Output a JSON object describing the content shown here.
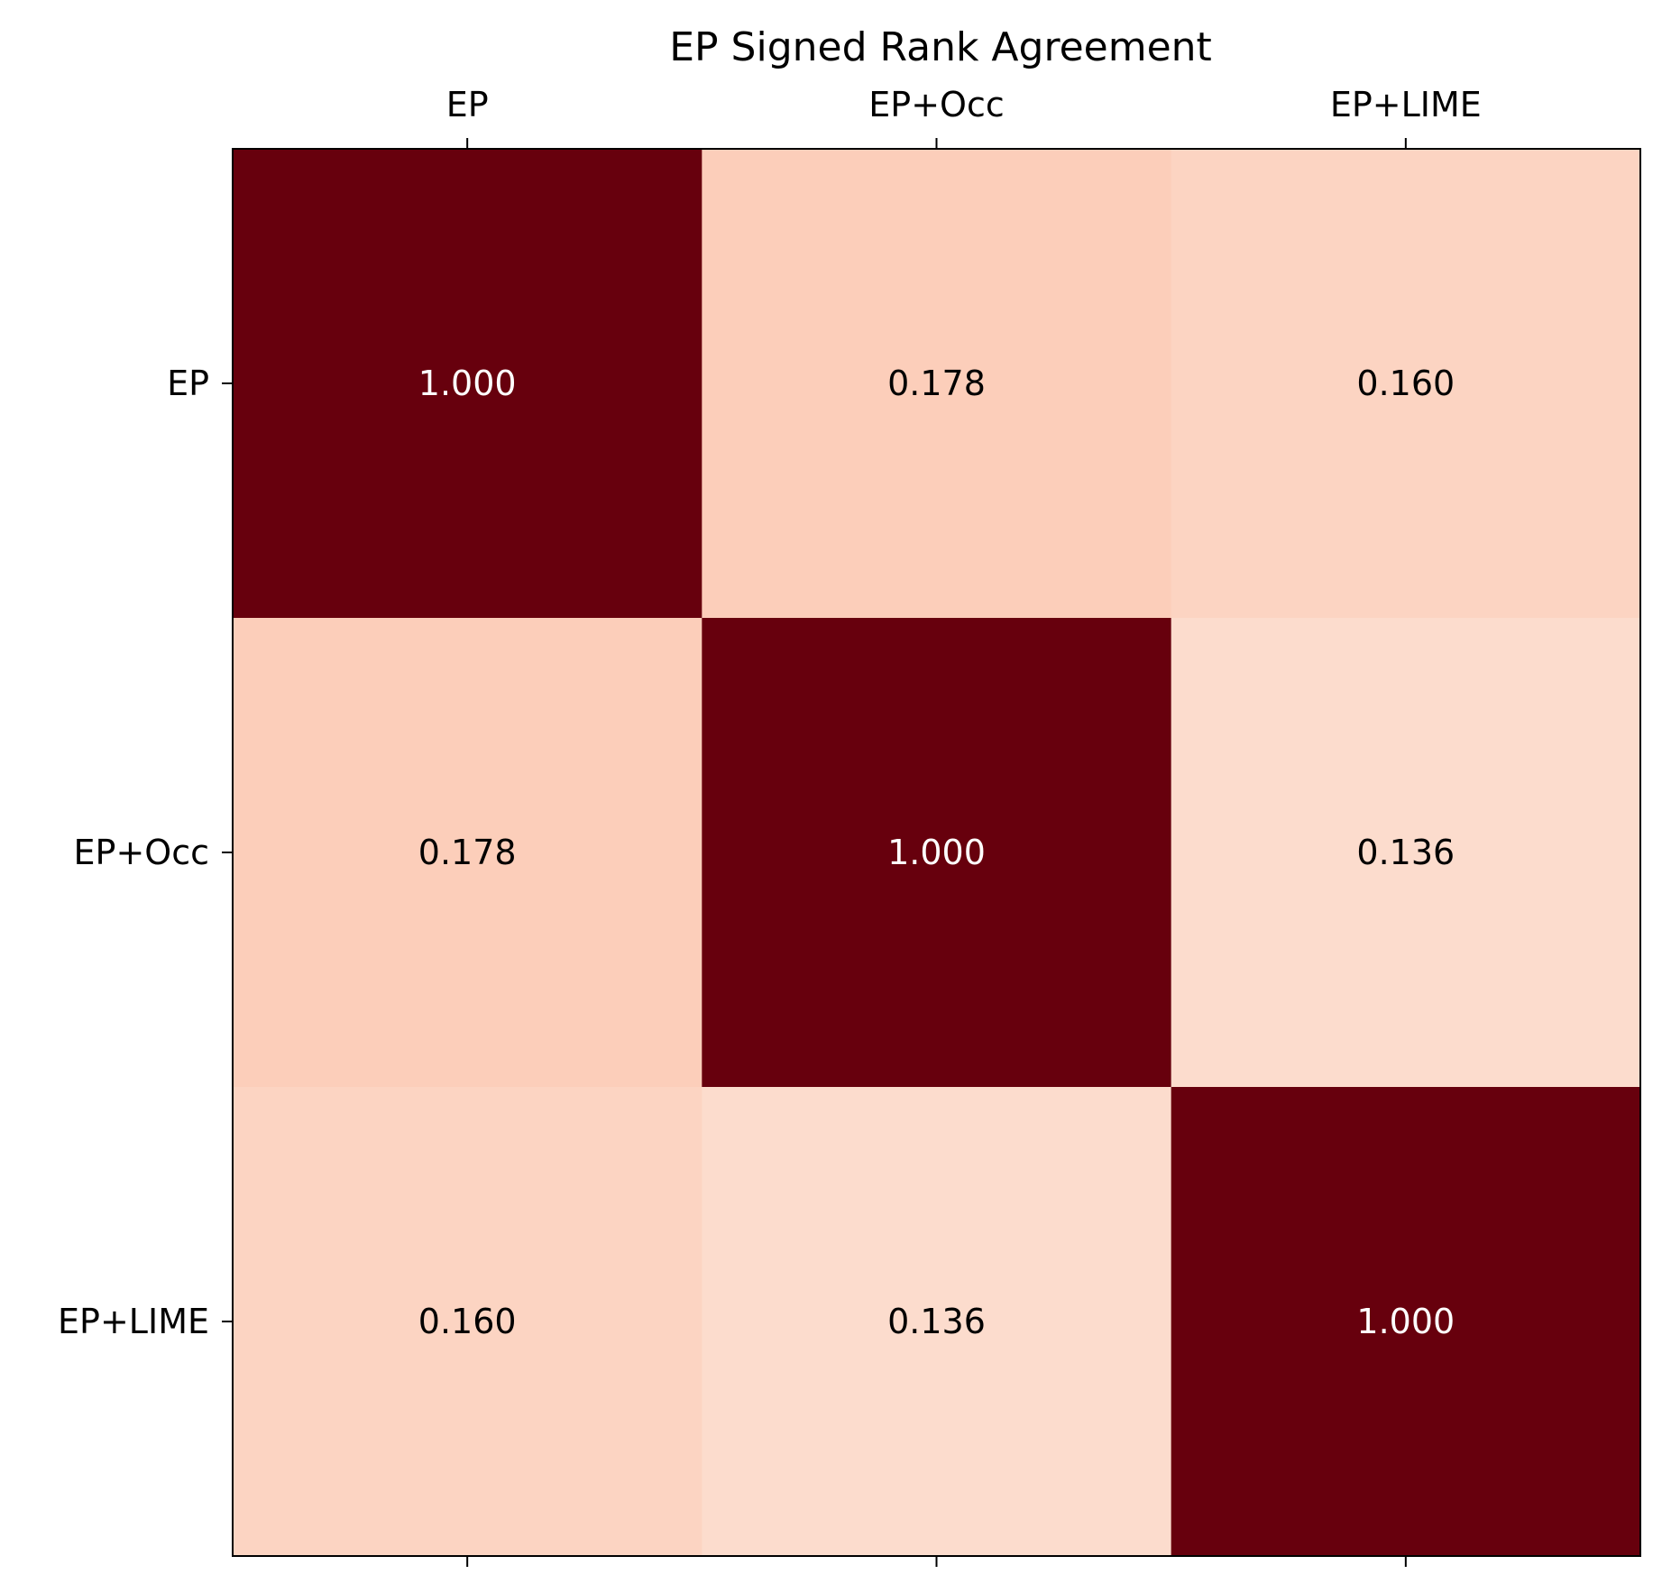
{
  "chart_data": {
    "type": "heatmap",
    "title": "EP Signed Rank Agreement",
    "x_labels": [
      "EP",
      "EP+Occ",
      "EP+LIME"
    ],
    "y_labels": [
      "EP",
      "EP+Occ",
      "EP+LIME"
    ],
    "values": [
      [
        1.0,
        0.178,
        0.16
      ],
      [
        0.178,
        1.0,
        0.136
      ],
      [
        0.16,
        0.136,
        1.0
      ]
    ],
    "value_labels": [
      [
        "1.000",
        "0.178",
        "0.160"
      ],
      [
        "0.178",
        "1.000",
        "0.136"
      ],
      [
        "0.160",
        "0.136",
        "1.000"
      ]
    ],
    "colormap": "Reds",
    "color_high": "#67000d",
    "color_mid": "#fcceba",
    "color_low": "#fcdccd",
    "text_dark": "#000000",
    "text_light": "#ffffff",
    "xlabel": "",
    "ylabel": "",
    "x_tick_position": "top"
  }
}
